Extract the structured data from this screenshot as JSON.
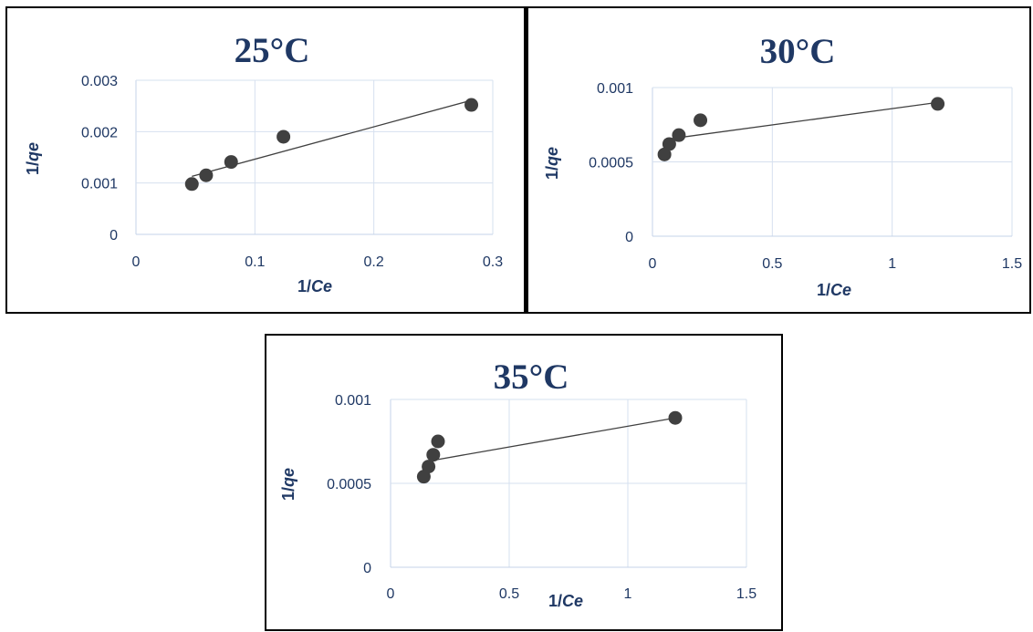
{
  "chart_data": [
    {
      "type": "scatter",
      "title": "25°C",
      "xlabel_main": "1/",
      "xlabel_var": "Ce",
      "ylabel_main": "1/",
      "ylabel_var": "qe",
      "xlim": [
        0,
        0.3
      ],
      "ylim": [
        0,
        0.003
      ],
      "xticks": [
        0,
        0.1,
        0.2,
        0.3
      ],
      "xtick_labels": [
        "0",
        "0.1",
        "0.2",
        "0.3"
      ],
      "yticks": [
        0,
        0.001,
        0.002,
        0.003
      ],
      "ytick_labels": [
        "0",
        "0.001",
        "0.002",
        "0.003"
      ],
      "grid": true,
      "points": [
        {
          "x": 0.047,
          "y": 0.00098
        },
        {
          "x": 0.059,
          "y": 0.00115
        },
        {
          "x": 0.08,
          "y": 0.00141
        },
        {
          "x": 0.124,
          "y": 0.0019
        },
        {
          "x": 0.282,
          "y": 0.00252
        }
      ],
      "trendline": {
        "x": [
          0.047,
          0.282
        ],
        "y": [
          0.00113,
          0.00261
        ]
      }
    },
    {
      "type": "scatter",
      "title": "30°C",
      "xlabel_main": "1/",
      "xlabel_var": "Ce",
      "ylabel_main": "1/",
      "ylabel_var": "qe",
      "xlim": [
        0,
        1.5
      ],
      "ylim": [
        0,
        0.001
      ],
      "xticks": [
        0,
        0.5,
        1,
        1.5
      ],
      "xtick_labels": [
        "0",
        "0.5",
        "1",
        "1.5"
      ],
      "yticks": [
        0,
        0.0005,
        0.001
      ],
      "ytick_labels": [
        "0",
        "0.0005",
        "0.001"
      ],
      "grid": true,
      "points": [
        {
          "x": 0.05,
          "y": 0.00055
        },
        {
          "x": 0.07,
          "y": 0.00062
        },
        {
          "x": 0.11,
          "y": 0.00068
        },
        {
          "x": 0.2,
          "y": 0.00078
        },
        {
          "x": 1.19,
          "y": 0.00089
        }
      ],
      "trendline": {
        "x": [
          0.05,
          1.19
        ],
        "y": [
          0.00065,
          0.0009
        ]
      }
    },
    {
      "type": "scatter",
      "title": "35°C",
      "xlabel_main": "1/",
      "xlabel_var": "Ce",
      "ylabel_main": "1/",
      "ylabel_var": "qe",
      "xlim": [
        0,
        1.5
      ],
      "ylim": [
        0,
        0.001
      ],
      "xticks": [
        0,
        0.5,
        1,
        1.5
      ],
      "xtick_labels": [
        "0",
        "0.5",
        "1",
        "1.5"
      ],
      "yticks": [
        0,
        0.0005,
        0.001
      ],
      "ytick_labels": [
        "0",
        "0.0005",
        "0.001"
      ],
      "grid": true,
      "points": [
        {
          "x": 0.14,
          "y": 0.00054
        },
        {
          "x": 0.16,
          "y": 0.0006
        },
        {
          "x": 0.18,
          "y": 0.00067
        },
        {
          "x": 0.2,
          "y": 0.00075
        },
        {
          "x": 1.2,
          "y": 0.00089
        }
      ],
      "trendline": {
        "x": [
          0.15,
          1.2
        ],
        "y": [
          0.00063,
          0.00089
        ]
      }
    }
  ],
  "colors": {
    "text": "#1f3864",
    "marker": "#404040",
    "grid": "#d6e0ef"
  }
}
